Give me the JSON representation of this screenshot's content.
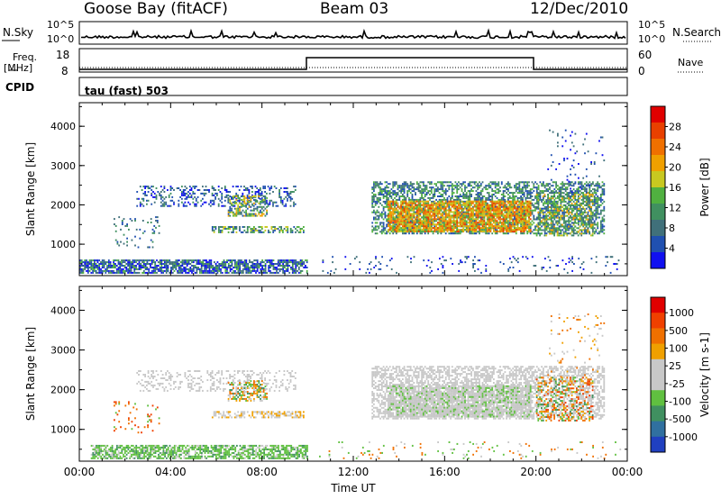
{
  "header": {
    "station": "Goose Bay (fitACF)",
    "beam": "Beam 03",
    "date": "12/Dec/2010"
  },
  "top_panel": {
    "left_label": "N.Sky",
    "right_label": "N.Search",
    "left_ticks": [
      "10^5",
      "10^0"
    ],
    "right_ticks": [
      "10^5",
      "10^0"
    ]
  },
  "freq_panel": {
    "left_label_line1": "Freq.",
    "left_label_line2": "[MHz]",
    "right_label": "Nave",
    "left_ticks": [
      "18",
      "8"
    ],
    "right_ticks": [
      "60",
      "0"
    ],
    "cpid_label": "CPID",
    "mode_text": "tau (fast) 503"
  },
  "chart_data": [
    {
      "type": "heatmap",
      "title": "",
      "xlabel": "Time UT",
      "ylabel": "Slant Range [km]",
      "x_ticks": [
        "00:00",
        "04:00",
        "08:00",
        "12:00",
        "16:00",
        "20:00",
        "00:00"
      ],
      "y_ticks": [
        "1000",
        "2000",
        "3000",
        "4000"
      ],
      "ylim": [
        200,
        4600
      ],
      "colorbar_label": "Power [dB]",
      "colorbar_ticks": [
        "4",
        "8",
        "12",
        "16",
        "20",
        "24",
        "28"
      ],
      "colorbar_colors": [
        "#1010f0",
        "#2050b0",
        "#40707a",
        "#409060",
        "#50b040",
        "#c8c820",
        "#f0a000",
        "#f07000",
        "#e84000",
        "#e00000"
      ],
      "scatter_regions": [
        {
          "t0": 0.0,
          "t1": 10.0,
          "r0": 250,
          "r1": 600,
          "dens": 0.75,
          "levels": [
            0,
            1,
            2,
            3,
            4,
            1,
            2,
            0
          ]
        },
        {
          "t0": 2.5,
          "t1": 9.5,
          "r0": 1950,
          "r1": 2450,
          "dens": 0.3,
          "levels": [
            1,
            1,
            2,
            3,
            0
          ]
        },
        {
          "t0": 6.5,
          "t1": 8.2,
          "r0": 1700,
          "r1": 2200,
          "dens": 0.55,
          "levels": [
            3,
            4,
            5,
            6,
            2,
            1
          ]
        },
        {
          "t0": 5.8,
          "t1": 9.8,
          "r0": 1280,
          "r1": 1450,
          "dens": 0.55,
          "levels": [
            2,
            3,
            4,
            5,
            1
          ]
        },
        {
          "t0": 1.5,
          "t1": 3.5,
          "r0": 900,
          "r1": 1700,
          "dens": 0.08,
          "levels": [
            1,
            2,
            3
          ]
        },
        {
          "t0": 12.8,
          "t1": 23.0,
          "r0": 1250,
          "r1": 2600,
          "dens": 0.55,
          "levels": [
            1,
            2,
            3,
            4
          ]
        },
        {
          "t0": 13.5,
          "t1": 19.8,
          "r0": 1300,
          "r1": 2100,
          "dens": 0.8,
          "levels": [
            5,
            6,
            7,
            8,
            7,
            6,
            5,
            4
          ]
        },
        {
          "t0": 20.0,
          "t1": 22.5,
          "r0": 1200,
          "r1": 2300,
          "dens": 0.35,
          "levels": [
            2,
            3,
            4,
            5,
            6
          ]
        },
        {
          "t0": 20.5,
          "t1": 23.0,
          "r0": 2300,
          "r1": 3900,
          "dens": 0.06,
          "levels": [
            0,
            1,
            2
          ]
        },
        {
          "t0": 10.5,
          "t1": 23.8,
          "r0": 250,
          "r1": 700,
          "dens": 0.06,
          "levels": [
            0,
            1,
            2
          ]
        }
      ]
    },
    {
      "type": "heatmap",
      "title": "",
      "xlabel": "Time UT",
      "ylabel": "Slant Range [km]",
      "x_ticks": [
        "00:00",
        "04:00",
        "08:00",
        "12:00",
        "16:00",
        "20:00",
        "00:00"
      ],
      "y_ticks": [
        "1000",
        "2000",
        "3000",
        "4000"
      ],
      "ylim": [
        200,
        4600
      ],
      "colorbar_label": "Velocity [m s-1]",
      "colorbar_ticks": [
        "1000",
        "500",
        "100",
        "25",
        "-25",
        "-100",
        "-500",
        "-1000"
      ],
      "colorbar_colors": [
        "#2040c0",
        "#3070a0",
        "#409060",
        "#60c040",
        "#c8c8c8",
        "#c8c8c8",
        "#f0a000",
        "#f07000",
        "#f04000",
        "#e00000"
      ],
      "scatter_regions": [
        {
          "t0": 0.5,
          "t1": 10.0,
          "r0": 250,
          "r1": 600,
          "dens": 0.7,
          "levels": [
            3,
            3,
            3,
            2,
            4
          ]
        },
        {
          "t0": 2.5,
          "t1": 9.5,
          "r0": 1950,
          "r1": 2450,
          "dens": 0.28,
          "levels": [
            4,
            5,
            4
          ]
        },
        {
          "t0": 6.5,
          "t1": 8.2,
          "r0": 1700,
          "r1": 2200,
          "dens": 0.5,
          "levels": [
            3,
            2,
            6,
            7,
            4
          ]
        },
        {
          "t0": 5.8,
          "t1": 9.8,
          "r0": 1280,
          "r1": 1450,
          "dens": 0.55,
          "levels": [
            4,
            5,
            6
          ]
        },
        {
          "t0": 1.5,
          "t1": 3.5,
          "r0": 900,
          "r1": 1700,
          "dens": 0.08,
          "levels": [
            3,
            7,
            8
          ]
        },
        {
          "t0": 12.8,
          "t1": 23.0,
          "r0": 1250,
          "r1": 2600,
          "dens": 0.55,
          "levels": [
            4,
            5,
            4,
            5
          ]
        },
        {
          "t0": 13.5,
          "t1": 19.8,
          "r0": 1300,
          "r1": 2100,
          "dens": 0.8,
          "levels": [
            4,
            5,
            4,
            5,
            3
          ]
        },
        {
          "t0": 20.0,
          "t1": 22.5,
          "r0": 1200,
          "r1": 2300,
          "dens": 0.35,
          "levels": [
            6,
            7,
            8,
            3,
            2
          ]
        },
        {
          "t0": 20.5,
          "t1": 23.0,
          "r0": 2300,
          "r1": 3900,
          "dens": 0.06,
          "levels": [
            4,
            6,
            7
          ]
        },
        {
          "t0": 10.5,
          "t1": 23.8,
          "r0": 250,
          "r1": 700,
          "dens": 0.06,
          "levels": [
            3,
            4,
            7
          ]
        }
      ]
    }
  ]
}
